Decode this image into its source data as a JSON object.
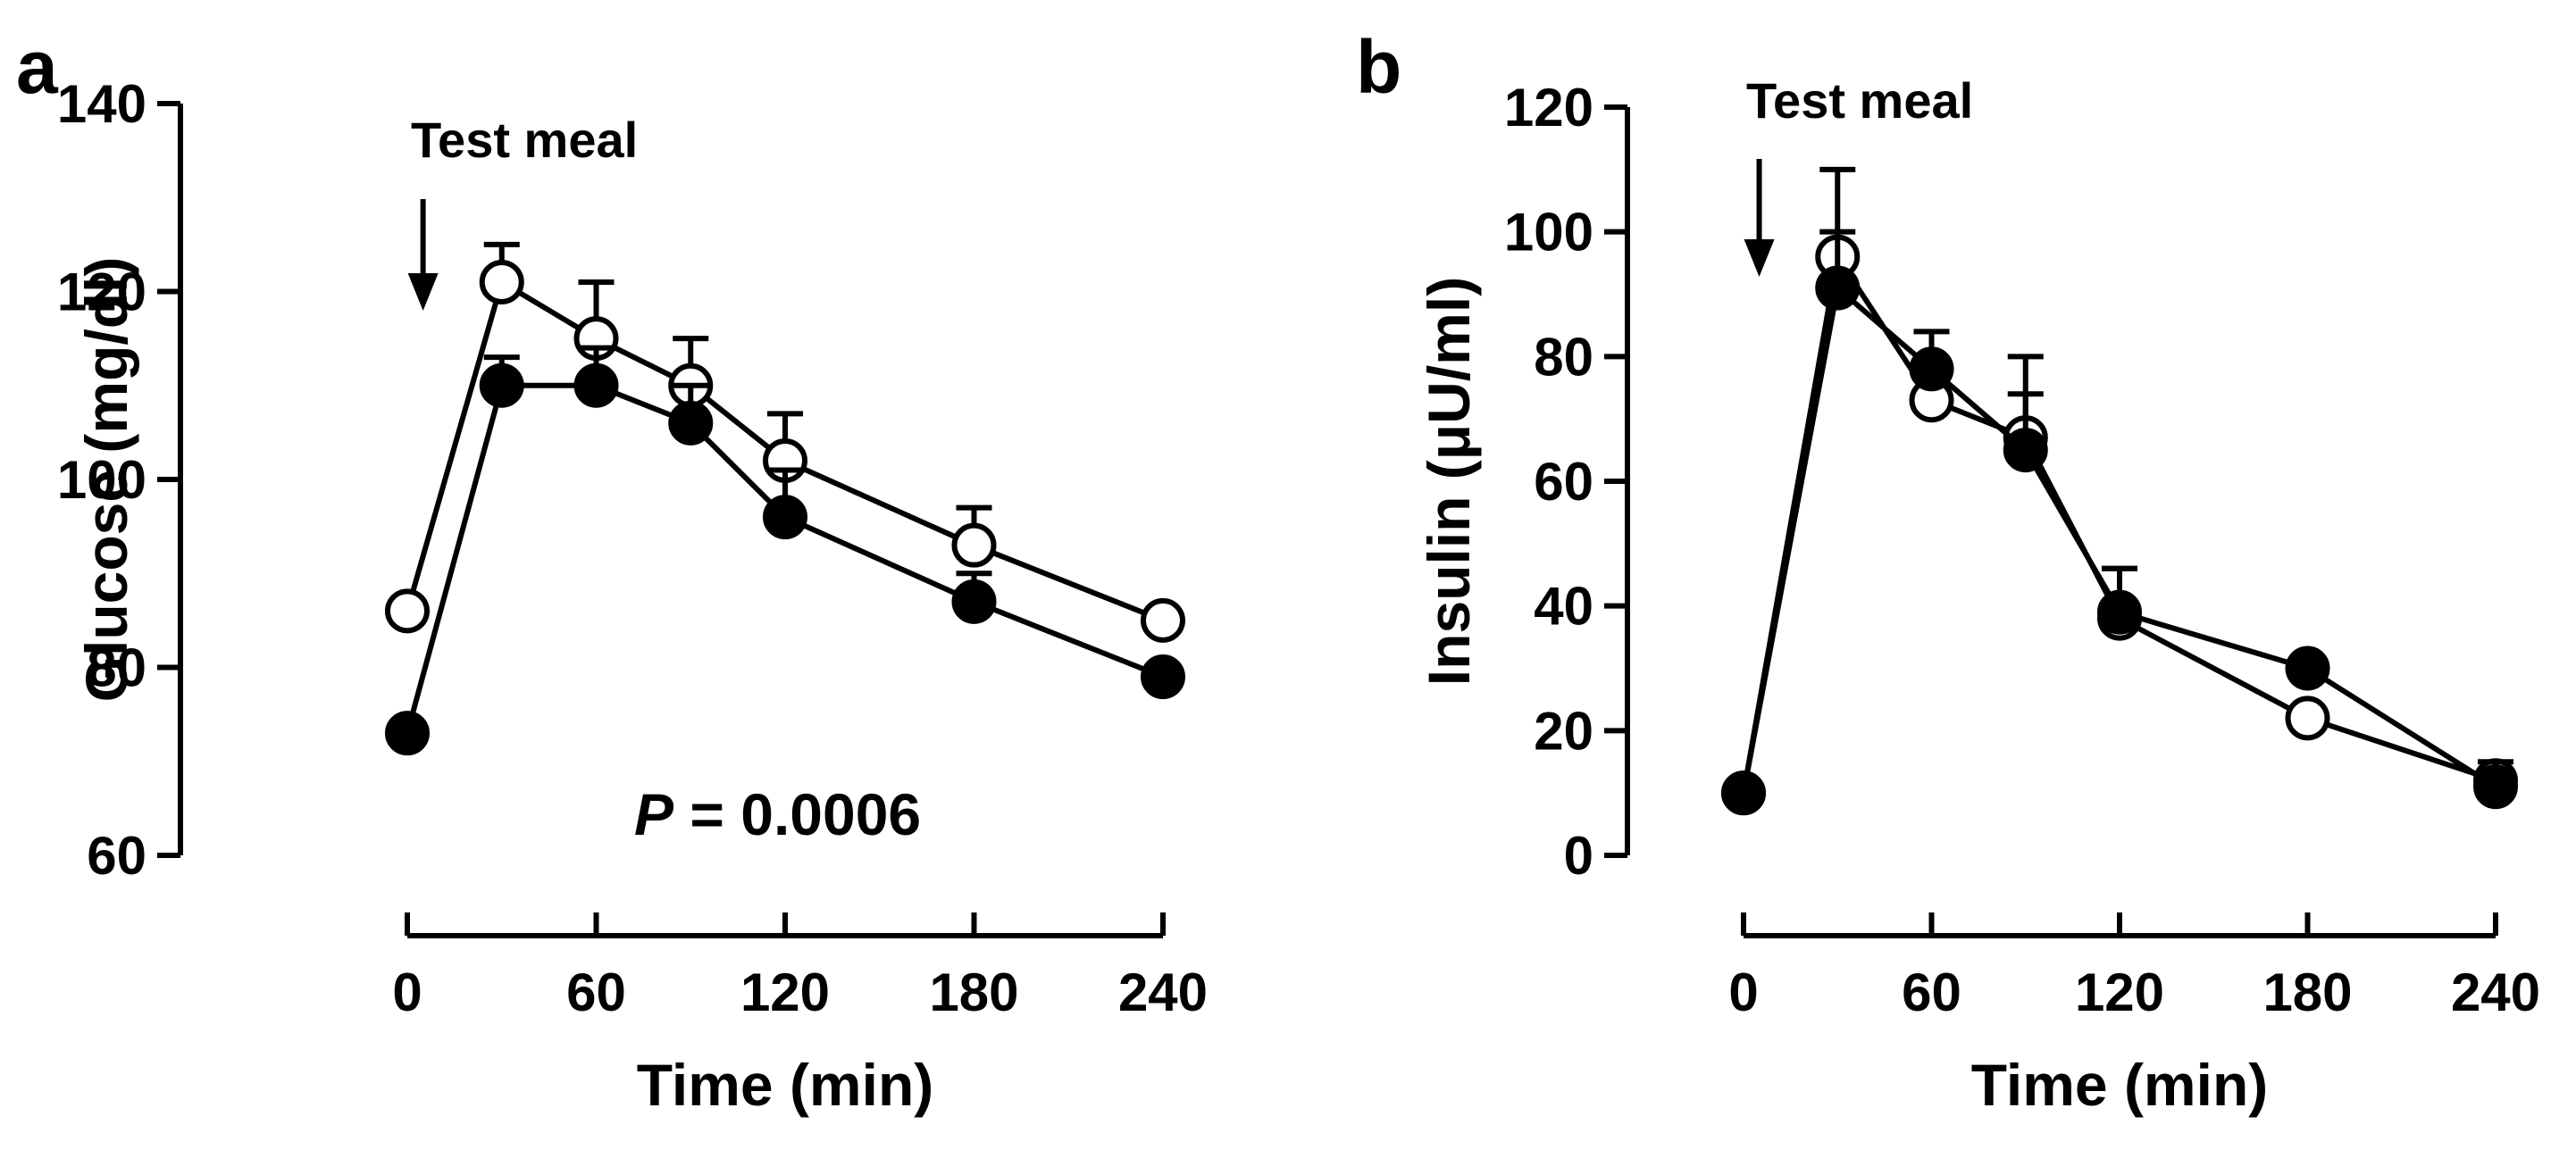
{
  "chart_data": [
    {
      "panel": "a",
      "type": "line",
      "xlabel": "Time (min)",
      "ylabel": "Glucose (mg/dl)",
      "xlim": [
        0,
        240
      ],
      "ylim": [
        60,
        140
      ],
      "xticks": [
        0,
        60,
        120,
        180,
        240
      ],
      "yticks": [
        60,
        80,
        100,
        120,
        140
      ],
      "annotation": "Test meal",
      "annotation_x": 5,
      "stat_italic": "P",
      "stat_rest": " = 0.0006",
      "grid": false,
      "series": [
        {
          "name": "open circles",
          "marker": "open",
          "x": [
            0,
            30,
            60,
            90,
            120,
            180,
            240
          ],
          "y": [
            86,
            121,
            115,
            110,
            102,
            93,
            85
          ],
          "err": [
            0,
            4,
            6,
            5,
            5,
            4,
            0
          ]
        },
        {
          "name": "filled circles",
          "marker": "filled",
          "x": [
            0,
            30,
            60,
            90,
            120,
            180,
            240
          ],
          "y": [
            73,
            110,
            110,
            106,
            96,
            87,
            79
          ],
          "err": [
            0,
            3,
            4,
            4,
            5,
            3,
            0
          ]
        }
      ]
    },
    {
      "panel": "b",
      "type": "line",
      "xlabel": "Time (min)",
      "ylabel": "Insulin (μU/ml)",
      "xlim": [
        0,
        240
      ],
      "ylim": [
        0,
        120
      ],
      "xticks": [
        0,
        60,
        120,
        180,
        240
      ],
      "yticks": [
        0,
        20,
        40,
        60,
        80,
        100,
        120
      ],
      "annotation": "Test meal",
      "annotation_x": 5,
      "grid": false,
      "series": [
        {
          "name": "open circles",
          "marker": "open",
          "x": [
            0,
            30,
            60,
            90,
            120,
            180,
            240
          ],
          "y": [
            10,
            96,
            73,
            67,
            38,
            22,
            12
          ],
          "err": [
            0,
            14,
            5,
            13,
            8,
            0,
            0
          ]
        },
        {
          "name": "filled circles",
          "marker": "filled",
          "x": [
            0,
            30,
            60,
            90,
            120,
            180,
            240
          ],
          "y": [
            10,
            91,
            78,
            65,
            39,
            30,
            11
          ],
          "err": [
            0,
            9,
            6,
            9,
            7,
            0,
            4
          ]
        }
      ]
    }
  ]
}
